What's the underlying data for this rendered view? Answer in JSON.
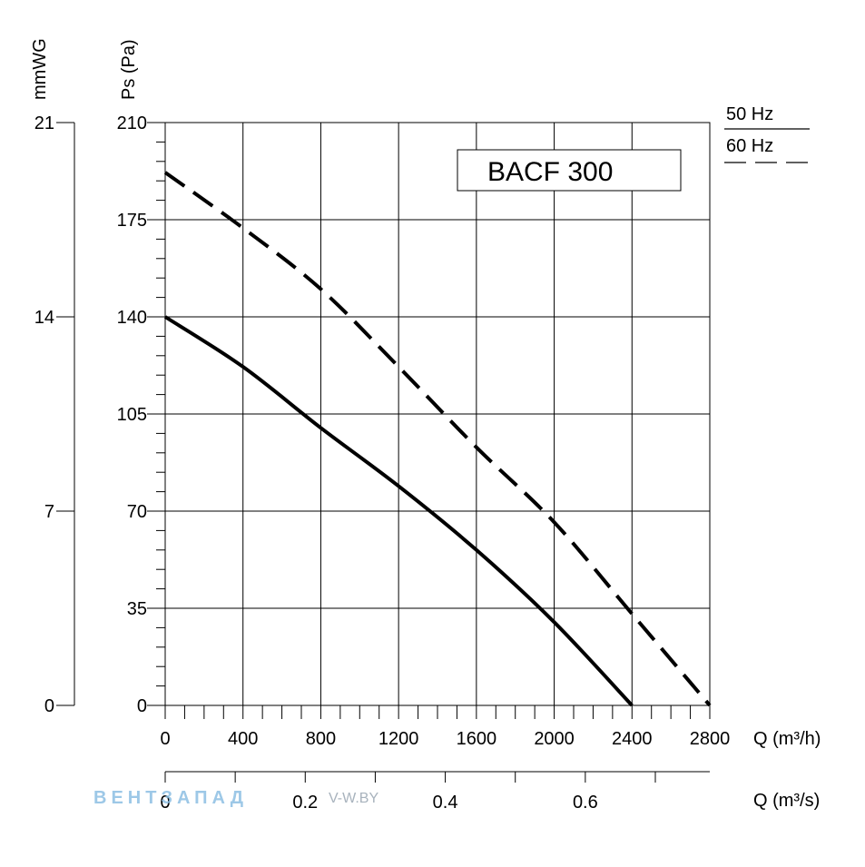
{
  "chart_data": {
    "type": "line",
    "title": "BACF 300",
    "xlabel": "Q (m³/h)",
    "ylabel": "Ps (Pa)",
    "ylabel_secondary": "mmWG",
    "xlabel_secondary": "Q (m³/s)",
    "xlim": [
      0,
      2800
    ],
    "ylim": [
      0,
      210
    ],
    "x_ticks": [
      0,
      400,
      800,
      1200,
      1600,
      2000,
      2400,
      2800
    ],
    "y_ticks": [
      0,
      35,
      70,
      105,
      140,
      175,
      210
    ],
    "y2_ticks": [
      {
        "label": "0",
        "pa": 0
      },
      {
        "label": "7",
        "pa": 70
      },
      {
        "label": "14",
        "pa": 140
      },
      {
        "label": "21",
        "pa": 210
      }
    ],
    "x2_ticks": [
      {
        "label": "0",
        "m3s": 0
      },
      {
        "label": "0.2",
        "m3s": 0.2
      },
      {
        "label": "0.4",
        "m3s": 0.4
      },
      {
        "label": "0.6",
        "m3s": 0.6
      }
    ],
    "x2_minor_step": 0.1,
    "x2_minor_max": 0.75,
    "grid": true,
    "series": [
      {
        "name": "50 Hz",
        "style": "solid",
        "x": [
          0,
          400,
          800,
          1200,
          1600,
          2000,
          2400
        ],
        "y": [
          140,
          122,
          100,
          79,
          56,
          30,
          0
        ]
      },
      {
        "name": "60 Hz",
        "style": "dashed",
        "x": [
          0,
          400,
          800,
          1200,
          1600,
          2000,
          2400,
          2800
        ],
        "y": [
          192,
          172,
          150,
          122,
          93,
          66,
          33,
          0
        ]
      }
    ],
    "legend": [
      "50 Hz",
      "60 Hz"
    ],
    "legend_position": "top-right"
  },
  "watermark": {
    "brand": "ВЕНТЗАПАД",
    "site": "V-W.BY"
  }
}
